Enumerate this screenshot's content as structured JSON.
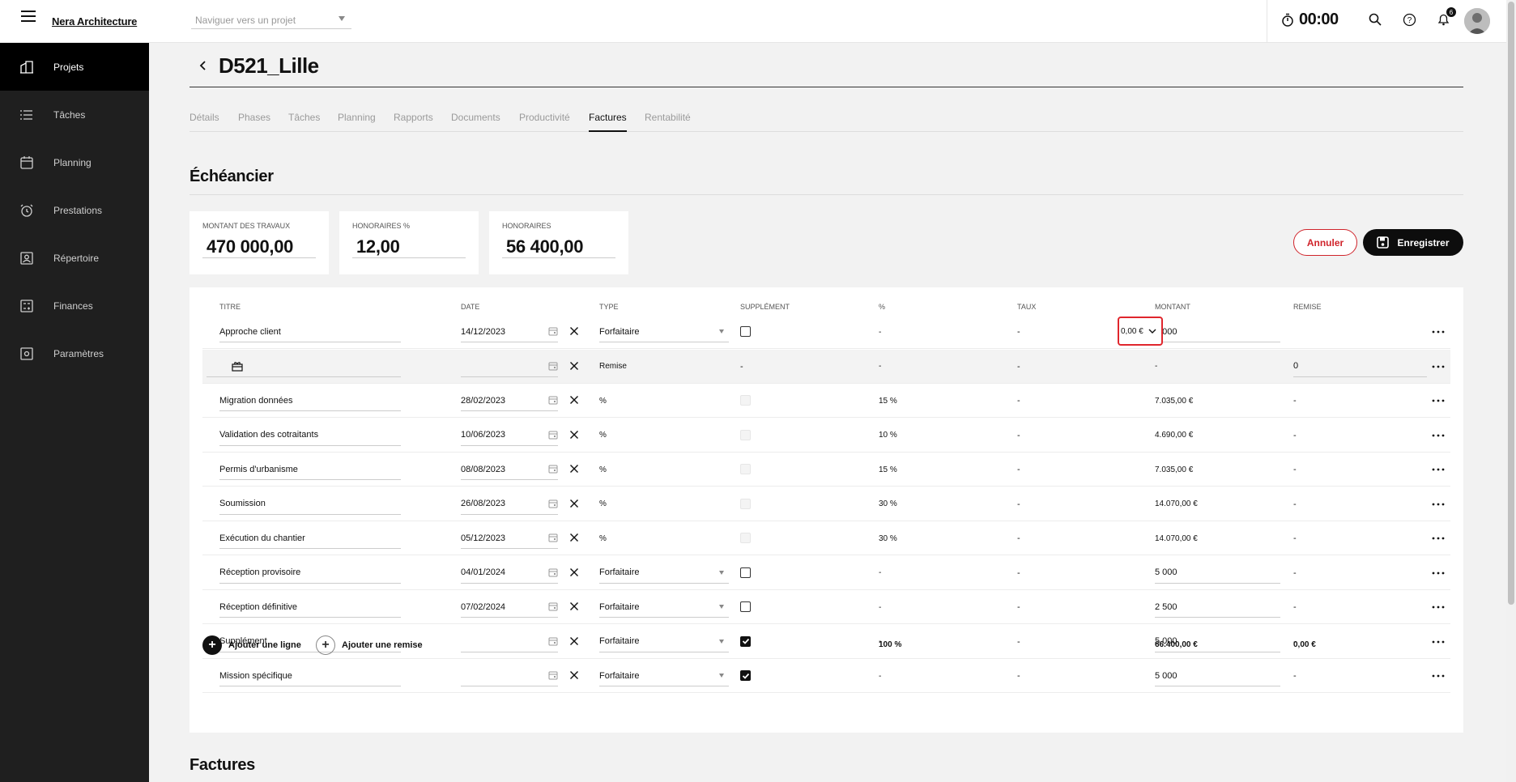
{
  "app": {
    "brand": "Nera Architecture",
    "project_nav_placeholder": "Naviguer vers un projet",
    "timer": "00:00",
    "notifications_count": "6"
  },
  "sidebar": {
    "items": [
      {
        "label": "Projets",
        "icon": "building-icon",
        "active": true
      },
      {
        "label": "Tâches",
        "icon": "list-icon",
        "active": false
      },
      {
        "label": "Planning",
        "icon": "calendar-icon",
        "active": false
      },
      {
        "label": "Prestations",
        "icon": "alarm-clock-icon",
        "active": false
      },
      {
        "label": "Répertoire",
        "icon": "contact-card-icon",
        "active": false
      },
      {
        "label": "Finances",
        "icon": "finance-icon",
        "active": false
      },
      {
        "label": "Paramètres",
        "icon": "settings-icon",
        "active": false
      }
    ]
  },
  "page": {
    "title": "D521_Lille",
    "tabs": [
      "Détails",
      "Phases",
      "Tâches",
      "Planning",
      "Rapports",
      "Documents",
      "Productivité",
      "Factures",
      "Rentabilité"
    ],
    "active_tab": "Factures"
  },
  "echeancier": {
    "title": "Échéancier",
    "kpis": [
      {
        "label": "MONTANT DES TRAVAUX",
        "value": "470 000,00"
      },
      {
        "label": "HONORAIRES %",
        "value": "12,00"
      },
      {
        "label": "HONORAIRES",
        "value": "56 400,00"
      }
    ],
    "cancel_label": "Annuler",
    "save_label": "Enregistrer",
    "columns": [
      "TITRE",
      "DATE",
      "TYPE",
      "SUPPLÉMENT",
      "%",
      "TAUX",
      "MONTANT",
      "REMISE"
    ],
    "rows": [
      {
        "title": "Approche client",
        "date": "14/12/2023",
        "type": "Forfaitaire",
        "supplement": "unchecked",
        "pct": "-",
        "taux": "-",
        "montant": "2 000",
        "remise": "0,00 €",
        "remise_select": true
      },
      {
        "title": "",
        "date": "",
        "type": "Remise",
        "supplement": "-",
        "pct": "-",
        "taux": "-",
        "montant": "-",
        "remise": "0",
        "discount": true
      },
      {
        "title": "Migration données",
        "date": "28/02/2023",
        "type": "%",
        "supplement": "disabled",
        "pct": "15 %",
        "taux": "-",
        "montant": "7.035,00 €",
        "remise": "-"
      },
      {
        "title": "Validation des cotraitants",
        "date": "10/06/2023",
        "type": "%",
        "supplement": "disabled",
        "pct": "10 %",
        "taux": "-",
        "montant": "4.690,00 €",
        "remise": "-"
      },
      {
        "title": "Permis d'urbanisme",
        "date": "08/08/2023",
        "type": "%",
        "supplement": "disabled",
        "pct": "15 %",
        "taux": "-",
        "montant": "7.035,00 €",
        "remise": "-"
      },
      {
        "title": "Soumission",
        "date": "26/08/2023",
        "type": "%",
        "supplement": "disabled",
        "pct": "30 %",
        "taux": "-",
        "montant": "14.070,00 €",
        "remise": "-"
      },
      {
        "title": "Exécution du chantier",
        "date": "05/12/2023",
        "type": "%",
        "supplement": "disabled",
        "pct": "30 %",
        "taux": "-",
        "montant": "14.070,00 €",
        "remise": "-"
      },
      {
        "title": "Réception provisoire",
        "date": "04/01/2024",
        "type": "Forfaitaire",
        "supplement": "unchecked",
        "pct": "-",
        "taux": "-",
        "montant": "5 000",
        "remise": "-"
      },
      {
        "title": "Réception définitive",
        "date": "07/02/2024",
        "type": "Forfaitaire",
        "supplement": "unchecked",
        "pct": "-",
        "taux": "-",
        "montant": "2 500",
        "remise": "-"
      },
      {
        "title": "Supplément",
        "date": "",
        "type": "Forfaitaire",
        "supplement": "checked",
        "pct": "-",
        "taux": "-",
        "montant": "5 000",
        "remise": "-"
      },
      {
        "title": "Mission spécifique",
        "date": "",
        "type": "Forfaitaire",
        "supplement": "checked",
        "pct": "-",
        "taux": "-",
        "montant": "5 000",
        "remise": "-"
      }
    ],
    "add_line_label": "Ajouter une ligne",
    "add_discount_label": "Ajouter une remise",
    "total_pct": "100 %",
    "total_montant": "66.400,00 €",
    "total_remise": "0,00 €"
  },
  "factures": {
    "title": "Factures"
  }
}
